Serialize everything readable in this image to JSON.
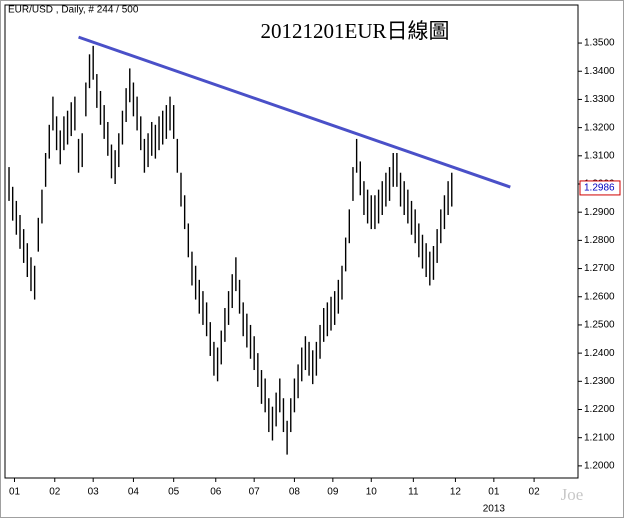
{
  "chart_data": {
    "type": "range_bar",
    "header": "EUR/USD , Daily, # 244 / 500",
    "title": "20121201EUR日線圖",
    "watermark": "Joe",
    "color": "#000000",
    "x": [
      0,
      2,
      4,
      6,
      8,
      10,
      12,
      14,
      16,
      18,
      20,
      22,
      24,
      26,
      28,
      30,
      32,
      34,
      36,
      38,
      40,
      42,
      44,
      46,
      48,
      50,
      52,
      54,
      56,
      58,
      60,
      62,
      64,
      66,
      68,
      70,
      72,
      74,
      76,
      78,
      80,
      82,
      84,
      86,
      88,
      90,
      92,
      94,
      96,
      98,
      100,
      102,
      104,
      106,
      108,
      110,
      112,
      114,
      116,
      118,
      120,
      122,
      124,
      126,
      128,
      130,
      132,
      134,
      136,
      138,
      140,
      142,
      144,
      146,
      148,
      150,
      152,
      154,
      156,
      158,
      160,
      162,
      164,
      166,
      168,
      170,
      172,
      174,
      176,
      178,
      180,
      182,
      184,
      186,
      188,
      190,
      192,
      194,
      196,
      198,
      200,
      202,
      204,
      206,
      208,
      210,
      212,
      214,
      216,
      218,
      220,
      222,
      224,
      226,
      228,
      230,
      232,
      234,
      236,
      238,
      240,
      242
    ],
    "high": [
      1.306,
      1.299,
      1.294,
      1.289,
      1.284,
      1.279,
      1.274,
      1.271,
      1.288,
      1.298,
      1.311,
      1.321,
      1.331,
      1.324,
      1.319,
      1.324,
      1.326,
      1.329,
      1.331,
      1.316,
      1.318,
      1.336,
      1.346,
      1.349,
      1.339,
      1.333,
      1.328,
      1.322,
      1.314,
      1.312,
      1.318,
      1.326,
      1.334,
      1.341,
      1.336,
      1.331,
      1.324,
      1.316,
      1.318,
      1.322,
      1.321,
      1.324,
      1.326,
      1.328,
      1.331,
      1.328,
      1.316,
      1.304,
      1.296,
      1.286,
      1.276,
      1.271,
      1.266,
      1.262,
      1.258,
      1.251,
      1.244,
      1.242,
      1.248,
      1.256,
      1.262,
      1.268,
      1.274,
      1.266,
      1.258,
      1.254,
      1.25,
      1.246,
      1.24,
      1.234,
      1.231,
      1.224,
      1.221,
      1.226,
      1.231,
      1.224,
      1.216,
      1.224,
      1.231,
      1.236,
      1.242,
      1.246,
      1.244,
      1.241,
      1.244,
      1.25,
      1.256,
      1.258,
      1.26,
      1.262,
      1.266,
      1.271,
      1.281,
      1.291,
      1.306,
      1.316,
      1.308,
      1.301,
      1.298,
      1.296,
      1.296,
      1.298,
      1.301,
      1.304,
      1.306,
      1.311,
      1.311,
      1.304,
      1.301,
      1.298,
      1.294,
      1.291,
      1.286,
      1.282,
      1.279,
      1.276,
      1.278,
      1.284,
      1.291,
      1.296,
      1.301,
      1.304
    ],
    "low": [
      1.294,
      1.287,
      1.282,
      1.277,
      1.272,
      1.267,
      1.262,
      1.259,
      1.276,
      1.286,
      1.299,
      1.309,
      1.319,
      1.312,
      1.307,
      1.312,
      1.314,
      1.317,
      1.319,
      1.304,
      1.306,
      1.324,
      1.334,
      1.337,
      1.327,
      1.321,
      1.316,
      1.31,
      1.302,
      1.3,
      1.306,
      1.314,
      1.322,
      1.329,
      1.324,
      1.319,
      1.312,
      1.304,
      1.306,
      1.31,
      1.309,
      1.312,
      1.314,
      1.316,
      1.319,
      1.316,
      1.304,
      1.292,
      1.284,
      1.274,
      1.264,
      1.259,
      1.254,
      1.25,
      1.246,
      1.239,
      1.232,
      1.23,
      1.236,
      1.244,
      1.25,
      1.256,
      1.262,
      1.254,
      1.246,
      1.242,
      1.238,
      1.234,
      1.228,
      1.222,
      1.219,
      1.212,
      1.209,
      1.214,
      1.219,
      1.212,
      1.204,
      1.212,
      1.219,
      1.224,
      1.23,
      1.234,
      1.232,
      1.229,
      1.232,
      1.238,
      1.244,
      1.246,
      1.248,
      1.25,
      1.254,
      1.259,
      1.269,
      1.279,
      1.294,
      1.304,
      1.296,
      1.289,
      1.286,
      1.284,
      1.284,
      1.286,
      1.289,
      1.292,
      1.294,
      1.299,
      1.299,
      1.292,
      1.289,
      1.286,
      1.282,
      1.279,
      1.274,
      1.27,
      1.267,
      1.264,
      1.266,
      1.272,
      1.279,
      1.284,
      1.289,
      1.292
    ],
    "trendline": {
      "x": [
        38,
        274
      ],
      "y": [
        1.3521,
        1.2989
      ],
      "color": "#4a50c8"
    },
    "last_price": 1.2986,
    "last_price_color": "#d00000",
    "xlim": [
      -2.2,
      311
    ],
    "ylim": [
      1.1957,
      1.3635
    ],
    "xticks": [
      {
        "value": 3,
        "label": "01"
      },
      {
        "value": 25,
        "label": "02"
      },
      {
        "value": 46,
        "label": "03"
      },
      {
        "value": 68,
        "label": "04"
      },
      {
        "value": 90,
        "label": "05"
      },
      {
        "value": 113,
        "label": "06"
      },
      {
        "value": 134,
        "label": "07"
      },
      {
        "value": 156,
        "label": "08"
      },
      {
        "value": 177,
        "label": "09"
      },
      {
        "value": 198,
        "label": "10"
      },
      {
        "value": 221,
        "label": "11"
      },
      {
        "value": 244,
        "label": "12"
      },
      {
        "value": 265,
        "label": "01"
      },
      {
        "value": 287,
        "label": "02"
      }
    ],
    "x_sublabels": [
      {
        "value": 265,
        "label": "2013"
      }
    ],
    "yticks": [
      {
        "value": 1.2,
        "label": "1.2000"
      },
      {
        "value": 1.21,
        "label": "1.2100"
      },
      {
        "value": 1.22,
        "label": "1.2200"
      },
      {
        "value": 1.23,
        "label": "1.2300"
      },
      {
        "value": 1.24,
        "label": "1.2400"
      },
      {
        "value": 1.25,
        "label": "1.2500"
      },
      {
        "value": 1.26,
        "label": "1.2600"
      },
      {
        "value": 1.27,
        "label": "1.2700"
      },
      {
        "value": 1.28,
        "label": "1.2800"
      },
      {
        "value": 1.29,
        "label": "1.2900"
      },
      {
        "value": 1.3,
        "label": "1.3000"
      },
      {
        "value": 1.31,
        "label": "1.3100"
      },
      {
        "value": 1.32,
        "label": "1.3200"
      },
      {
        "value": 1.33,
        "label": "1.3300"
      },
      {
        "value": 1.34,
        "label": "1.3400"
      },
      {
        "value": 1.35,
        "label": "1.3500"
      }
    ]
  }
}
